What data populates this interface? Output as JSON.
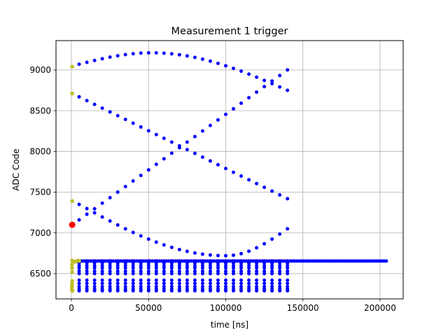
{
  "chart_data": {
    "type": "scatter",
    "title": "Measurement 1 trigger",
    "xlabel": "time [ns]",
    "ylabel": "ADC Code",
    "xlim": [
      -10000,
      215000
    ],
    "ylim": [
      6190,
      9360
    ],
    "xticks": [
      0,
      50000,
      100000,
      150000,
      200000
    ],
    "xtick_labels": [
      "0",
      "50000",
      "100000",
      "150000",
      "200000"
    ],
    "yticks": [
      6500,
      7000,
      7500,
      8000,
      8500,
      9000
    ],
    "ytick_labels": [
      "6500",
      "7000",
      "7500",
      "8000",
      "8500",
      "9000"
    ],
    "grid": true,
    "colors": {
      "blue": "#0000ff",
      "olive": "#bfbf28",
      "red": "#ff0000",
      "grid": "#b0b0b0"
    },
    "trace_params": {
      "sweep_x_start": 5000,
      "sweep_x_end": 140000,
      "sweep_count": 28,
      "baseline_x_end": 204000,
      "baseline_count": 135,
      "baseline_y": 6655
    },
    "series": [
      {
        "color": "blue",
        "curves": [
          {
            "kind": "arch_top",
            "y_start": 9070,
            "y_peak": 9210,
            "x_peak": 52000,
            "y_end": 8750
          },
          {
            "kind": "rise",
            "y_start": 7160,
            "y_end": 9000
          },
          {
            "kind": "fall",
            "y_start": 8670,
            "y_end": 7420
          },
          {
            "kind": "rise_from_low",
            "y_start": 7350,
            "y_low": 6720,
            "x_low": 100000,
            "y_end": 7050
          },
          {
            "kind": "flat",
            "y": 6655,
            "extends_to": "baseline"
          },
          {
            "kind": "flat",
            "y": 6630
          },
          {
            "kind": "flat",
            "y": 6600
          },
          {
            "kind": "flat",
            "y": 6570
          },
          {
            "kind": "flat",
            "y": 6530
          },
          {
            "kind": "flat",
            "y": 6500
          },
          {
            "kind": "flat",
            "y": 6420
          },
          {
            "kind": "flat",
            "y": 6380
          },
          {
            "kind": "flat",
            "y": 6340
          },
          {
            "kind": "flat",
            "y": 6310
          },
          {
            "kind": "flat",
            "y": 6290
          }
        ]
      },
      {
        "color": "olive",
        "points": [
          [
            500,
            9040
          ],
          [
            500,
            8710
          ],
          [
            500,
            7390
          ],
          [
            500,
            6660
          ],
          [
            1200,
            6650
          ],
          [
            2000,
            6645
          ],
          [
            3000,
            6650
          ],
          [
            4000,
            6660
          ],
          [
            5000,
            6655
          ],
          [
            300,
            6610
          ],
          [
            400,
            6570
          ],
          [
            400,
            6520
          ],
          [
            500,
            6410
          ],
          [
            400,
            6370
          ],
          [
            300,
            6340
          ],
          [
            300,
            6320
          ],
          [
            400,
            6300
          ],
          [
            600,
            6290
          ]
        ]
      },
      {
        "color": "red",
        "points": [
          [
            500,
            7100
          ]
        ]
      }
    ]
  }
}
